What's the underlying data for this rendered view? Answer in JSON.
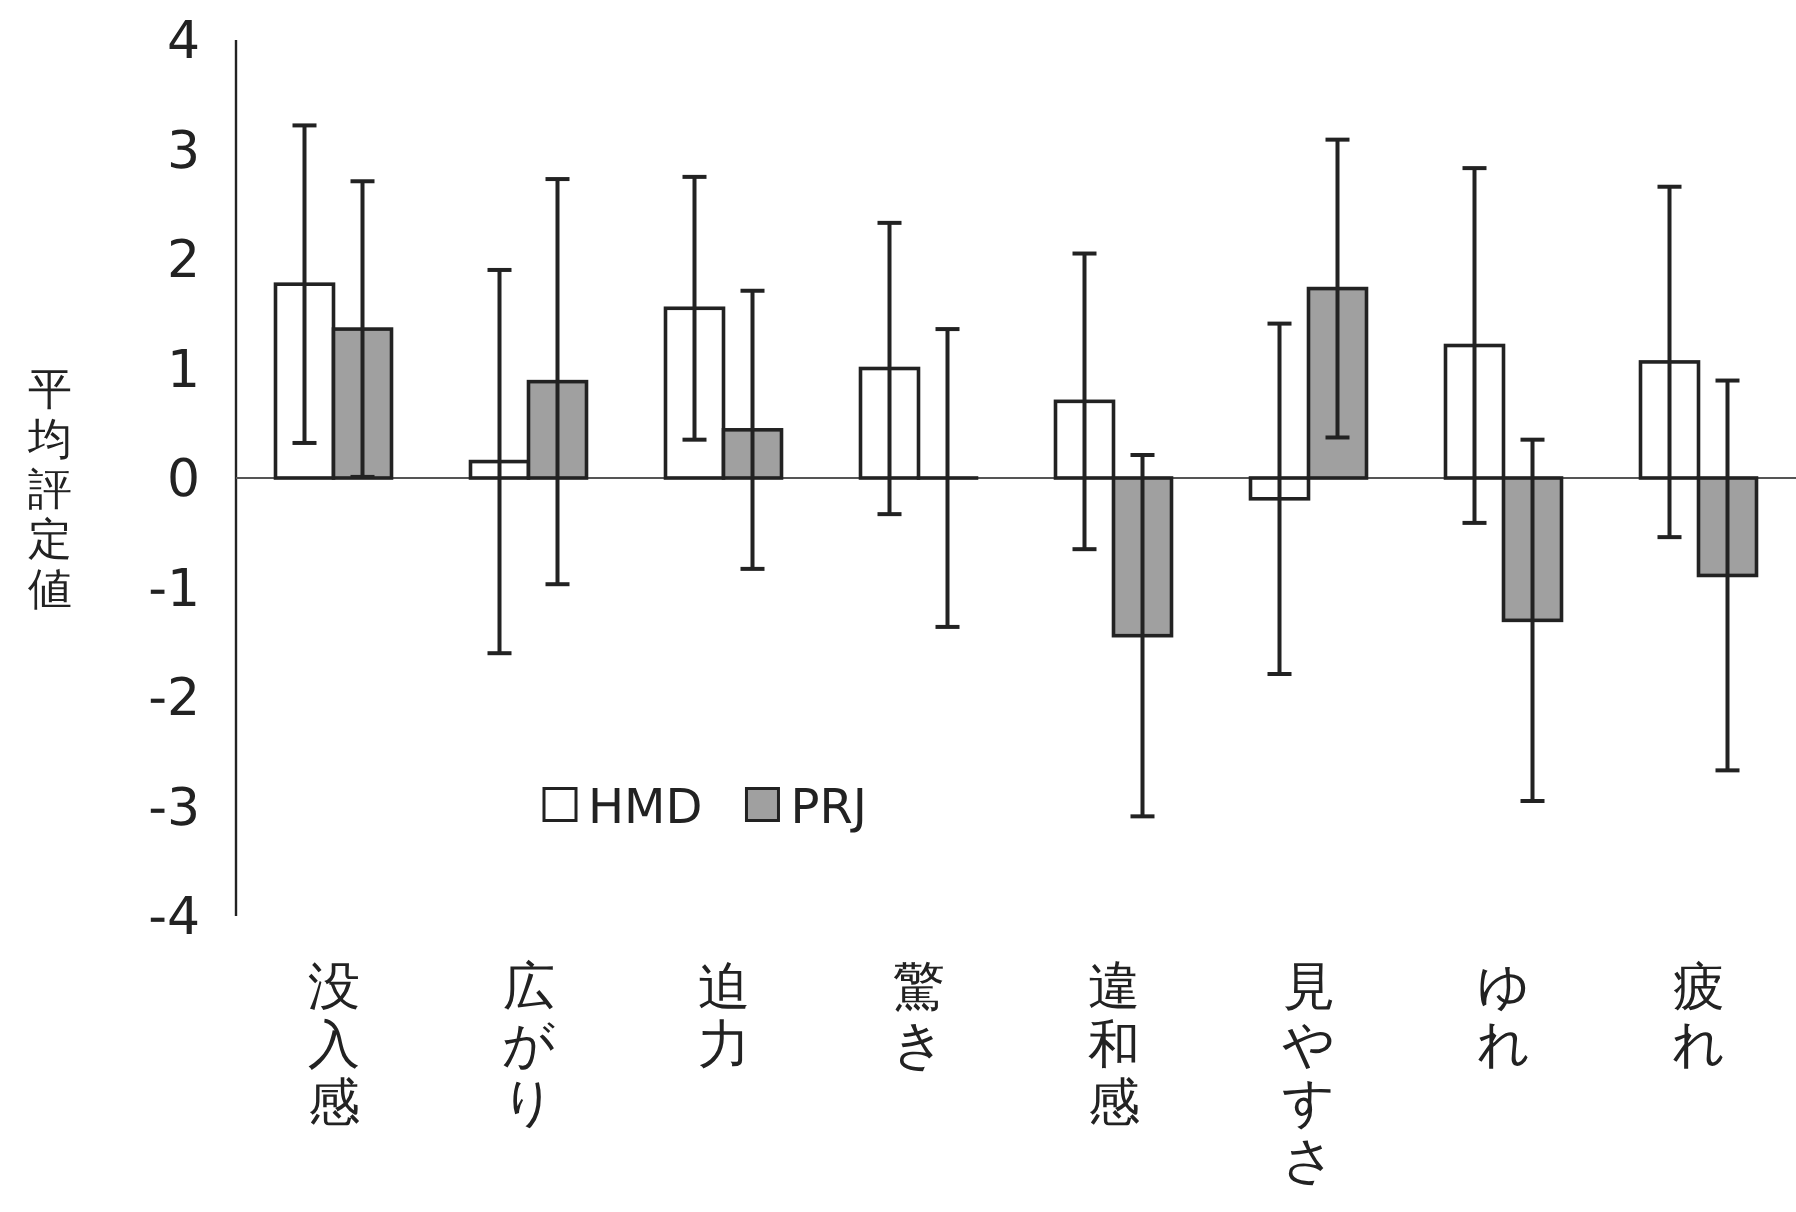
{
  "chart_data": {
    "type": "bar",
    "ylabel": "平均評定値",
    "categories": [
      "没入感",
      "広がり",
      "迫力",
      "驚き",
      "違和感",
      "見やすさ",
      "ゆれ",
      "疲れ"
    ],
    "series": [
      {
        "name": "HMD",
        "color": "#ffffff",
        "values": [
          1.77,
          0.15,
          1.55,
          1.0,
          0.7,
          -0.19,
          1.21,
          1.06
        ],
        "errors": [
          1.45,
          1.75,
          1.2,
          1.33,
          1.35,
          1.6,
          1.62,
          1.6
        ]
      },
      {
        "name": "PRJ",
        "color": "#a0a0a0",
        "values": [
          1.36,
          0.88,
          0.44,
          0.0,
          -1.44,
          1.73,
          -1.3,
          -0.89
        ],
        "errors": [
          1.35,
          1.85,
          1.27,
          1.36,
          1.65,
          1.36,
          1.65,
          1.78
        ]
      }
    ],
    "ylim": [
      -4,
      4
    ],
    "yticks": [
      -4,
      -3,
      -2,
      -1,
      0,
      1,
      2,
      3,
      4
    ],
    "legend": "bottom left"
  }
}
